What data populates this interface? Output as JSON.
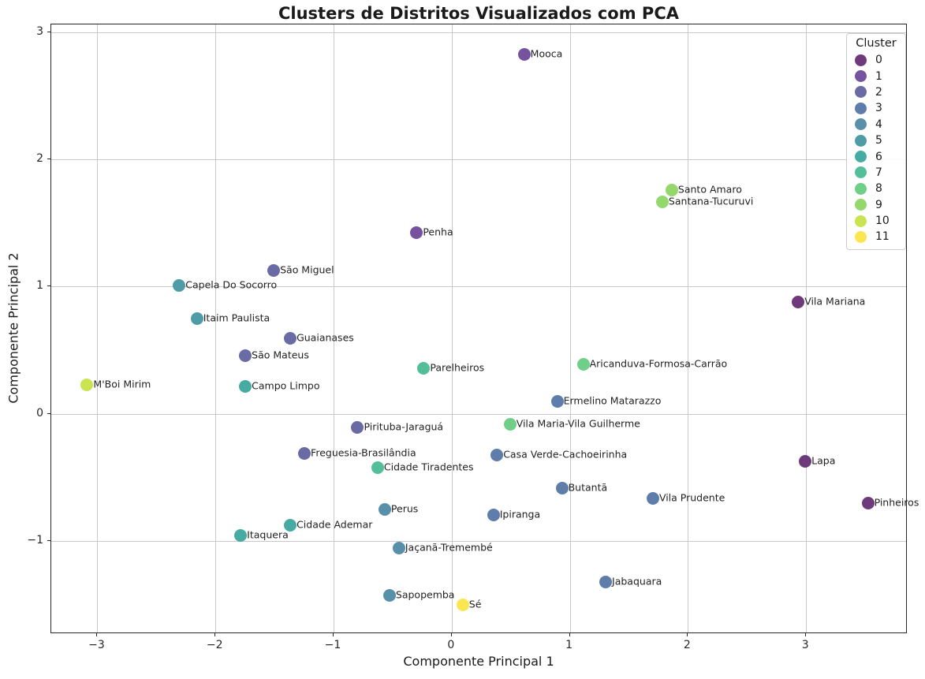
{
  "title": "Clusters de Distritos Visualizados com PCA",
  "xlabel": "Componente Principal 1",
  "ylabel": "Componente Principal 2",
  "legend": {
    "title": "Cluster",
    "entries": [
      {
        "label": "0",
        "color": "#6e3a7c"
      },
      {
        "label": "1",
        "color": "#75539e"
      },
      {
        "label": "2",
        "color": "#6a6aa5"
      },
      {
        "label": "3",
        "color": "#5e7dab"
      },
      {
        "label": "4",
        "color": "#588fa9"
      },
      {
        "label": "5",
        "color": "#4f9ca8"
      },
      {
        "label": "6",
        "color": "#46aba3"
      },
      {
        "label": "7",
        "color": "#52bf99"
      },
      {
        "label": "8",
        "color": "#6fce88"
      },
      {
        "label": "9",
        "color": "#94d76d"
      },
      {
        "label": "10",
        "color": "#c9e351"
      },
      {
        "label": "11",
        "color": "#fbe651"
      }
    ]
  },
  "axes": {
    "x_range": [
      -3.39,
      3.86
    ],
    "y_range": [
      -1.73,
      3.06
    ],
    "x_ticks": [
      {
        "value": -3,
        "label": "−3"
      },
      {
        "value": -2,
        "label": "−2"
      },
      {
        "value": -1,
        "label": "−1"
      },
      {
        "value": 0,
        "label": "0"
      },
      {
        "value": 1,
        "label": "1"
      },
      {
        "value": 2,
        "label": "2"
      },
      {
        "value": 3,
        "label": "3"
      }
    ],
    "y_ticks": [
      {
        "value": -1,
        "label": "−1"
      },
      {
        "value": 0,
        "label": "0"
      },
      {
        "value": 1,
        "label": "1"
      },
      {
        "value": 2,
        "label": "2"
      },
      {
        "value": 3,
        "label": "3"
      }
    ]
  },
  "chart_data": {
    "type": "scatter",
    "title": "Clusters de Distritos Visualizados com PCA",
    "xlabel": "Componente Principal 1",
    "ylabel": "Componente Principal 2",
    "xlim": [
      -3.39,
      3.86
    ],
    "ylim": [
      -1.73,
      3.06
    ],
    "grid": true,
    "legend_position": "upper right",
    "cluster_colors": [
      "#6e3a7c",
      "#75539e",
      "#6a6aa5",
      "#5e7dab",
      "#588fa9",
      "#4f9ca8",
      "#46aba3",
      "#52bf99",
      "#6fce88",
      "#94d76d",
      "#c9e351",
      "#fbe651"
    ],
    "points": [
      {
        "label": "Mooca",
        "cluster": 1,
        "x": 0.62,
        "y": 2.82
      },
      {
        "label": "Santo Amaro",
        "cluster": 9,
        "x": 1.87,
        "y": 1.75
      },
      {
        "label": "Santana-Tucuruvi",
        "cluster": 9,
        "x": 1.79,
        "y": 1.66
      },
      {
        "label": "Penha",
        "cluster": 1,
        "x": -0.29,
        "y": 1.42
      },
      {
        "label": "São Miguel",
        "cluster": 2,
        "x": -1.5,
        "y": 1.12
      },
      {
        "label": "Capela Do Socorro",
        "cluster": 5,
        "x": -2.3,
        "y": 1.0
      },
      {
        "label": "Vila Mariana",
        "cluster": 0,
        "x": 2.94,
        "y": 0.87
      },
      {
        "label": "Itaim Paulista",
        "cluster": 5,
        "x": -2.15,
        "y": 0.74
      },
      {
        "label": "Guaianases",
        "cluster": 2,
        "x": -1.36,
        "y": 0.59
      },
      {
        "label": "São Mateus",
        "cluster": 2,
        "x": -1.74,
        "y": 0.45
      },
      {
        "label": "Aricanduva-Formosa-Carrão",
        "cluster": 8,
        "x": 1.12,
        "y": 0.38
      },
      {
        "label": "Parelheiros",
        "cluster": 7,
        "x": -0.23,
        "y": 0.35
      },
      {
        "label": "M'Boi Mirim",
        "cluster": 10,
        "x": -3.08,
        "y": 0.22
      },
      {
        "label": "Campo Limpo",
        "cluster": 6,
        "x": -1.74,
        "y": 0.21
      },
      {
        "label": "Ermelino Matarazzo",
        "cluster": 3,
        "x": 0.9,
        "y": 0.09
      },
      {
        "label": "Vila Maria-Vila Guilherme",
        "cluster": 8,
        "x": 0.5,
        "y": -0.09
      },
      {
        "label": "Pirituba-Jaraguá",
        "cluster": 2,
        "x": -0.79,
        "y": -0.11
      },
      {
        "label": "Freguesia-Brasilândia",
        "cluster": 2,
        "x": -1.24,
        "y": -0.32
      },
      {
        "label": "Casa Verde-Cachoeirinha",
        "cluster": 3,
        "x": 0.39,
        "y": -0.33
      },
      {
        "label": "Lapa",
        "cluster": 0,
        "x": 3.0,
        "y": -0.38
      },
      {
        "label": "Cidade Tiradentes",
        "cluster": 7,
        "x": -0.62,
        "y": -0.43
      },
      {
        "label": "Butantã",
        "cluster": 3,
        "x": 0.94,
        "y": -0.59
      },
      {
        "label": "Vila Prudente",
        "cluster": 3,
        "x": 1.71,
        "y": -0.67
      },
      {
        "label": "Pinheiros",
        "cluster": 0,
        "x": 3.53,
        "y": -0.71
      },
      {
        "label": "Perus",
        "cluster": 4,
        "x": -0.56,
        "y": -0.76
      },
      {
        "label": "Ipiranga",
        "cluster": 3,
        "x": 0.36,
        "y": -0.8
      },
      {
        "label": "Cidade Ademar",
        "cluster": 6,
        "x": -1.36,
        "y": -0.88
      },
      {
        "label": "Itaquera",
        "cluster": 6,
        "x": -1.78,
        "y": -0.96
      },
      {
        "label": "Jaçanã-Tremembé",
        "cluster": 4,
        "x": -0.44,
        "y": -1.06
      },
      {
        "label": "Jabaquara",
        "cluster": 3,
        "x": 1.31,
        "y": -1.33
      },
      {
        "label": "Sapopemba",
        "cluster": 4,
        "x": -0.52,
        "y": -1.43
      },
      {
        "label": "Sé",
        "cluster": 11,
        "x": 0.1,
        "y": -1.51
      }
    ]
  }
}
